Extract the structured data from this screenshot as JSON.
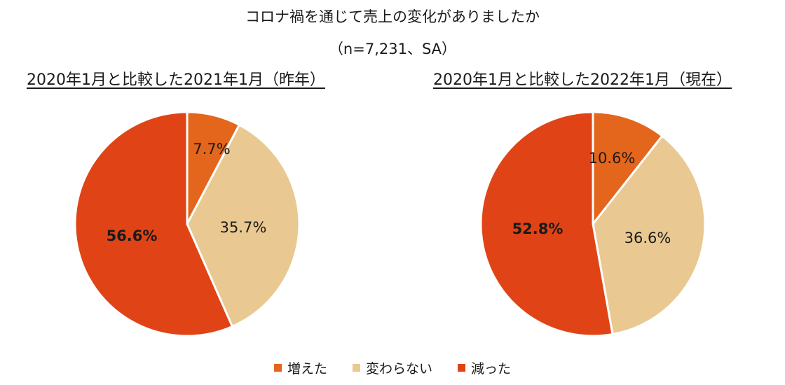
{
  "title_line1": "コロナ禍を通じて売上の変化がありましたか",
  "title_line2": "（n=7,231、SA）",
  "chart_data": [
    {
      "type": "pie",
      "title": "2020年1月と比較した2021年1月（昨年）",
      "categories": [
        "増えた",
        "変わらない",
        "減った"
      ],
      "values": [
        7.7,
        35.7,
        56.6
      ],
      "labels": [
        "7.7%",
        "35.7%",
        "56.6%"
      ],
      "colors": [
        "#e4651c",
        "#e9c991",
        "#e04416"
      ]
    },
    {
      "type": "pie",
      "title": "2020年1月と比較した2022年1月（現在）",
      "categories": [
        "増えた",
        "変わらない",
        "減った"
      ],
      "values": [
        10.6,
        36.6,
        52.8
      ],
      "labels": [
        "10.6%",
        "36.6%",
        "52.8%"
      ],
      "colors": [
        "#e4651c",
        "#e9c991",
        "#e04416"
      ]
    }
  ],
  "legend": [
    {
      "label": "増えた",
      "color": "#e4651c"
    },
    {
      "label": "変わらない",
      "color": "#e9c991"
    },
    {
      "label": "減った",
      "color": "#e04416"
    }
  ]
}
